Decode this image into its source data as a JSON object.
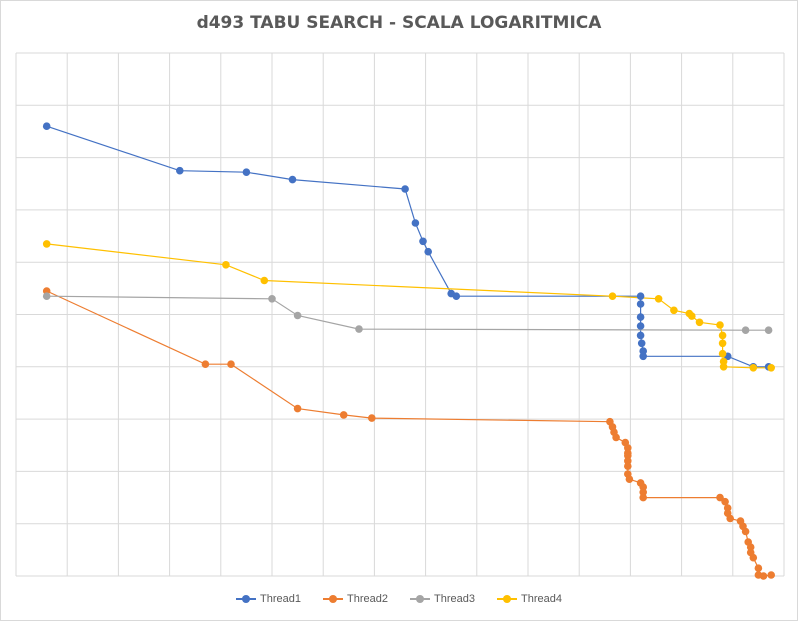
{
  "chart_data": {
    "type": "line",
    "title": "d493 TABU SEARCH - SCALA LOGARITMICA",
    "xlabel": "",
    "ylabel": "",
    "log_scale": true,
    "grid": true,
    "legend_position": "bottom",
    "xlim": [
      0,
      15
    ],
    "ylim": [
      0,
      10
    ],
    "series": [
      {
        "name": "Thread1",
        "color": "#4472c4",
        "points": [
          [
            0.6,
            8.6
          ],
          [
            3.2,
            7.75
          ],
          [
            4.5,
            7.72
          ],
          [
            5.4,
            7.58
          ],
          [
            7.6,
            7.4
          ],
          [
            7.8,
            6.75
          ],
          [
            7.95,
            6.4
          ],
          [
            8.05,
            6.2
          ],
          [
            8.5,
            5.4
          ],
          [
            8.6,
            5.35
          ],
          [
            12.2,
            5.35
          ],
          [
            12.2,
            5.2
          ],
          [
            12.2,
            4.95
          ],
          [
            12.2,
            4.78
          ],
          [
            12.2,
            4.6
          ],
          [
            12.22,
            4.45
          ],
          [
            12.25,
            4.3
          ],
          [
            12.25,
            4.2
          ],
          [
            13.9,
            4.2
          ],
          [
            14.4,
            4.0
          ],
          [
            14.7,
            4.0
          ]
        ]
      },
      {
        "name": "Thread2",
        "color": "#ed7d31",
        "points": [
          [
            0.6,
            5.45
          ],
          [
            3.7,
            4.05
          ],
          [
            4.2,
            4.05
          ],
          [
            5.5,
            3.2
          ],
          [
            6.4,
            3.08
          ],
          [
            6.95,
            3.02
          ],
          [
            11.6,
            2.95
          ],
          [
            11.65,
            2.85
          ],
          [
            11.68,
            2.75
          ],
          [
            11.72,
            2.65
          ],
          [
            11.9,
            2.55
          ],
          [
            11.95,
            2.45
          ],
          [
            11.95,
            2.35
          ],
          [
            11.95,
            2.3
          ],
          [
            11.95,
            2.2
          ],
          [
            11.95,
            2.1
          ],
          [
            11.95,
            1.95
          ],
          [
            11.98,
            1.85
          ],
          [
            12.2,
            1.78
          ],
          [
            12.25,
            1.7
          ],
          [
            12.25,
            1.6
          ],
          [
            12.25,
            1.5
          ],
          [
            13.75,
            1.5
          ],
          [
            13.85,
            1.42
          ],
          [
            13.9,
            1.3
          ],
          [
            13.9,
            1.2
          ],
          [
            13.95,
            1.1
          ],
          [
            14.15,
            1.05
          ],
          [
            14.2,
            0.95
          ],
          [
            14.25,
            0.85
          ],
          [
            14.3,
            0.65
          ],
          [
            14.35,
            0.55
          ],
          [
            14.35,
            0.45
          ],
          [
            14.4,
            0.35
          ],
          [
            14.5,
            0.15
          ],
          [
            14.5,
            0.02
          ],
          [
            14.6,
            0.0
          ],
          [
            14.75,
            0.02
          ]
        ]
      },
      {
        "name": "Thread3",
        "color": "#a5a5a5",
        "points": [
          [
            0.6,
            5.35
          ],
          [
            5.0,
            5.3
          ],
          [
            5.5,
            4.98
          ],
          [
            6.7,
            4.72
          ],
          [
            14.25,
            4.7
          ],
          [
            14.7,
            4.7
          ]
        ]
      },
      {
        "name": "Thread4",
        "color": "#ffc000",
        "points": [
          [
            0.6,
            6.35
          ],
          [
            4.1,
            5.95
          ],
          [
            4.85,
            5.65
          ],
          [
            11.65,
            5.35
          ],
          [
            12.55,
            5.3
          ],
          [
            12.85,
            5.08
          ],
          [
            13.15,
            5.02
          ],
          [
            13.2,
            4.97
          ],
          [
            13.35,
            4.85
          ],
          [
            13.75,
            4.8
          ],
          [
            13.8,
            4.6
          ],
          [
            13.8,
            4.45
          ],
          [
            13.8,
            4.25
          ],
          [
            13.82,
            4.1
          ],
          [
            13.82,
            4.0
          ],
          [
            14.4,
            3.98
          ],
          [
            14.75,
            3.98
          ]
        ]
      }
    ]
  }
}
